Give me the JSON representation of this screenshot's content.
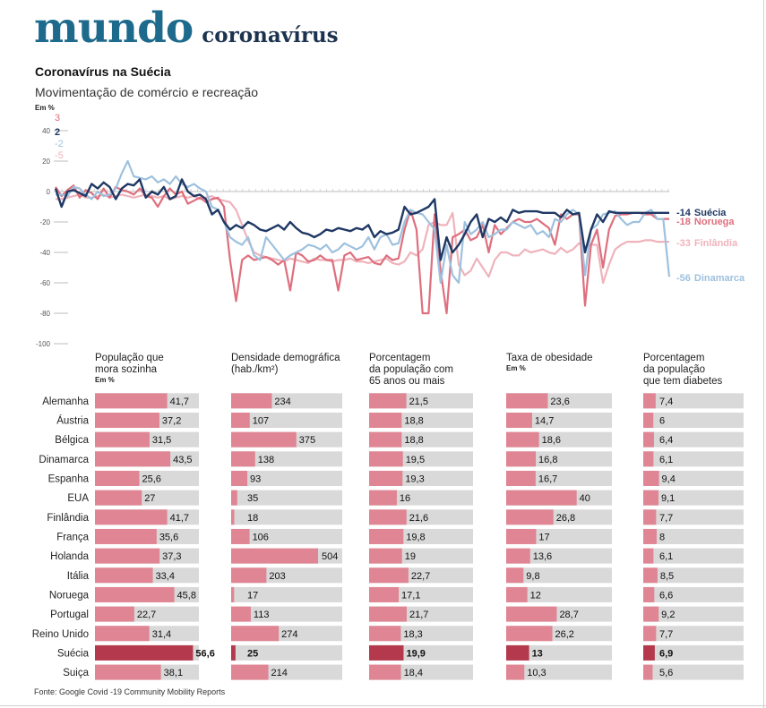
{
  "header": {
    "section": "mundo",
    "topic": "coronavírus"
  },
  "title": "Coronavírus na Suécia",
  "subtitle": "Movimentação de comércio e recreação",
  "source": "Fonte: Google Covid -19 Community Mobility Reports",
  "colors": {
    "sweden": "#1f3864",
    "norway": "#de6f7e",
    "finland": "#efb3bb",
    "denmark": "#9ec1de",
    "bar_fill": "#df8593",
    "bar_highlight": "#b4394d",
    "bar_track": "#d9d9d9",
    "brand": "#1d6a8c"
  },
  "chart_data": [
    {
      "type": "line",
      "title": "Movimentação de comércio e recreação",
      "ylabel": "Em %",
      "ylim": [
        -100,
        40
      ],
      "yticks": [
        40,
        20,
        0,
        -20,
        -40,
        -60,
        -80,
        -100
      ],
      "start_labels": [
        {
          "text": "3",
          "series": "Noruega"
        },
        {
          "text": "2",
          "series": "Suécia"
        },
        {
          "text": "-2",
          "series": "Dinamarca"
        },
        {
          "text": "-5",
          "series": "Finlândia"
        }
      ],
      "series": [
        {
          "name": "Finlândia",
          "end_label": "-33",
          "values": [
            -5,
            -5,
            -4,
            -3,
            -2,
            -4,
            -4,
            -3,
            -2,
            -4,
            -3,
            -2,
            -3,
            -4,
            -3,
            -2,
            -3,
            -4,
            -3,
            -5,
            -4,
            -3,
            -4,
            -3,
            -5,
            -4,
            -3,
            -5,
            -6,
            -7,
            -12,
            -22,
            -32,
            -40,
            -42,
            -43,
            -44,
            -45,
            -46,
            -44,
            -45,
            -46,
            -47,
            -44,
            -45,
            -45,
            -46,
            -45,
            -45,
            -44,
            -46,
            -46,
            -47,
            -46,
            -45,
            -44,
            -47,
            -48,
            -46,
            -40,
            -42,
            -38,
            -22,
            -20,
            -22,
            -22,
            -14,
            -48,
            -55,
            -52,
            -44,
            -50,
            -56,
            -45,
            -40,
            -40,
            -42,
            -42,
            -38,
            -40,
            -39,
            -38,
            -40,
            -41,
            -37,
            -40,
            -38,
            -34,
            -36,
            -35,
            -35,
            -60,
            -48,
            -38,
            -35,
            -33,
            -33,
            -33,
            -32,
            -32,
            -33,
            -33,
            -33
          ]
        },
        {
          "name": "Noruega",
          "end_label": "-18",
          "values": [
            3,
            -3,
            1,
            4,
            -4,
            1,
            -1,
            -5,
            2,
            -4,
            3,
            1,
            0,
            -2,
            2,
            -3,
            -4,
            -10,
            -3,
            2,
            -2,
            0,
            -8,
            -6,
            -4,
            -7,
            -5,
            -4,
            -10,
            -45,
            -72,
            -45,
            -42,
            -45,
            -44,
            -43,
            -45,
            -48,
            -45,
            -65,
            -40,
            -42,
            -46,
            -45,
            -42,
            -45,
            -45,
            -65,
            -42,
            -40,
            -45,
            -44,
            -43,
            -47,
            -48,
            -42,
            -45,
            -44,
            -25,
            -12,
            -25,
            -80,
            -80,
            -15,
            -52,
            -80,
            -30,
            -28,
            -25,
            -32,
            -30,
            -22,
            -40,
            -22,
            -28,
            -24,
            -20,
            -18,
            -20,
            -20,
            -18,
            -21,
            -24,
            -35,
            -15,
            -18,
            -15,
            -15,
            -75,
            -35,
            -25,
            -50,
            -25,
            -16,
            -15,
            -15,
            -14,
            -14,
            -15,
            -15,
            -18,
            -18,
            -18
          ]
        },
        {
          "name": "Dinamarca",
          "end_label": "-56",
          "values": [
            -2,
            -2,
            -3,
            3,
            2,
            -2,
            -5,
            0,
            -3,
            -2,
            2,
            12,
            20,
            10,
            9,
            8,
            10,
            6,
            8,
            5,
            10,
            5,
            3,
            5,
            2,
            0,
            -10,
            -12,
            -20,
            -30,
            -33,
            -35,
            -30,
            -42,
            -45,
            -30,
            -35,
            -40,
            -45,
            -42,
            -40,
            -38,
            -35,
            -36,
            -38,
            -35,
            -40,
            -38,
            -34,
            -36,
            -38,
            -36,
            -30,
            -38,
            -30,
            -28,
            -35,
            -34,
            -20,
            -12,
            -14,
            -15,
            -20,
            -25,
            -60,
            -35,
            -55,
            -60,
            -20,
            -28,
            -25,
            -20,
            -30,
            -28,
            -25,
            -25,
            -20,
            -22,
            -24,
            -22,
            -28,
            -26,
            -30,
            -18,
            -20,
            -15,
            -12,
            -15,
            -55,
            -25,
            -22,
            -15,
            -14,
            -13,
            -18,
            -22,
            -20,
            -20,
            -14,
            -12,
            -18,
            -18,
            -56
          ]
        },
        {
          "name": "Suécia",
          "end_label": "-14",
          "values": [
            2,
            -10,
            0,
            1,
            -1,
            -3,
            5,
            2,
            6,
            3,
            -5,
            2,
            5,
            4,
            8,
            -4,
            0,
            -2,
            3,
            -5,
            -3,
            8,
            0,
            -3,
            -2,
            -5,
            -15,
            -12,
            -20,
            -25,
            -22,
            -24,
            -20,
            -22,
            -25,
            -26,
            -24,
            -22,
            -25,
            -20,
            -24,
            -27,
            -28,
            -30,
            -28,
            -25,
            -26,
            -24,
            -25,
            -26,
            -24,
            -25,
            -22,
            -30,
            -26,
            -28,
            -27,
            -25,
            -10,
            -15,
            -14,
            -12,
            -10,
            -5,
            -45,
            -30,
            -40,
            -35,
            -28,
            -20,
            -15,
            -30,
            -18,
            -20,
            -17,
            -20,
            -12,
            -14,
            -13,
            -13,
            -13,
            -14,
            -14,
            -14,
            -17,
            -12,
            -15,
            -14,
            -40,
            -25,
            -15,
            -20,
            -13,
            -14,
            -14,
            -14,
            -14,
            -14,
            -14,
            -14,
            -14,
            -14,
            -14
          ]
        }
      ]
    },
    {
      "type": "table",
      "countries": [
        "Alemanha",
        "Áustria",
        "Bélgica",
        "Dinamarca",
        "Espanha",
        "EUA",
        "Finlândia",
        "França",
        "Holanda",
        "Itália",
        "Noruega",
        "Portugal",
        "Reino Unido",
        "Suécia",
        "Suiça"
      ],
      "highlight": "Suécia",
      "columns": [
        {
          "header": [
            "População que",
            "mora sozinha"
          ],
          "unit": "Em %",
          "max": 60,
          "values": [
            "41,7",
            "37,2",
            "31,5",
            "43,5",
            "25,6",
            "27",
            "41,7",
            "35,6",
            "37,3",
            "33,4",
            "45,8",
            "22,7",
            "31,4",
            "56,6",
            "38,1"
          ]
        },
        {
          "header": [
            "Densidade demográfica",
            "(hab./km²)"
          ],
          "unit": "",
          "max": 500,
          "values": [
            "234",
            "107",
            "375",
            "138",
            "93",
            "35",
            "18",
            "106",
            "504",
            "203",
            "17",
            "113",
            "274",
            "25",
            "214"
          ]
        },
        {
          "header": [
            "Porcentagem",
            "da população com",
            "65 anos ou mais"
          ],
          "unit": "",
          "max": 60,
          "values": [
            "21,5",
            "18,8",
            "18,8",
            "19,5",
            "19,3",
            "16",
            "21,6",
            "19,8",
            "19",
            "22,7",
            "17,1",
            "21,7",
            "18,3",
            "19,9",
            "18,4"
          ]
        },
        {
          "header": [
            "Taxa de obesidade"
          ],
          "unit": "Em %",
          "max": 60,
          "values": [
            "23,6",
            "14,7",
            "18,6",
            "16,8",
            "16,7",
            "40",
            "26,8",
            "17",
            "13,6",
            "9,8",
            "12",
            "28,7",
            "26,2",
            "13",
            "10,3"
          ]
        },
        {
          "header": [
            "Porcentagem",
            "da população",
            "que tem diabetes"
          ],
          "unit": "",
          "max": 60,
          "values": [
            "7,4",
            "6",
            "6,4",
            "6,1",
            "9,4",
            "9,1",
            "7,7",
            "8",
            "6,1",
            "8,5",
            "6,6",
            "9,2",
            "7,7",
            "6,9",
            "5,6"
          ]
        }
      ]
    }
  ]
}
